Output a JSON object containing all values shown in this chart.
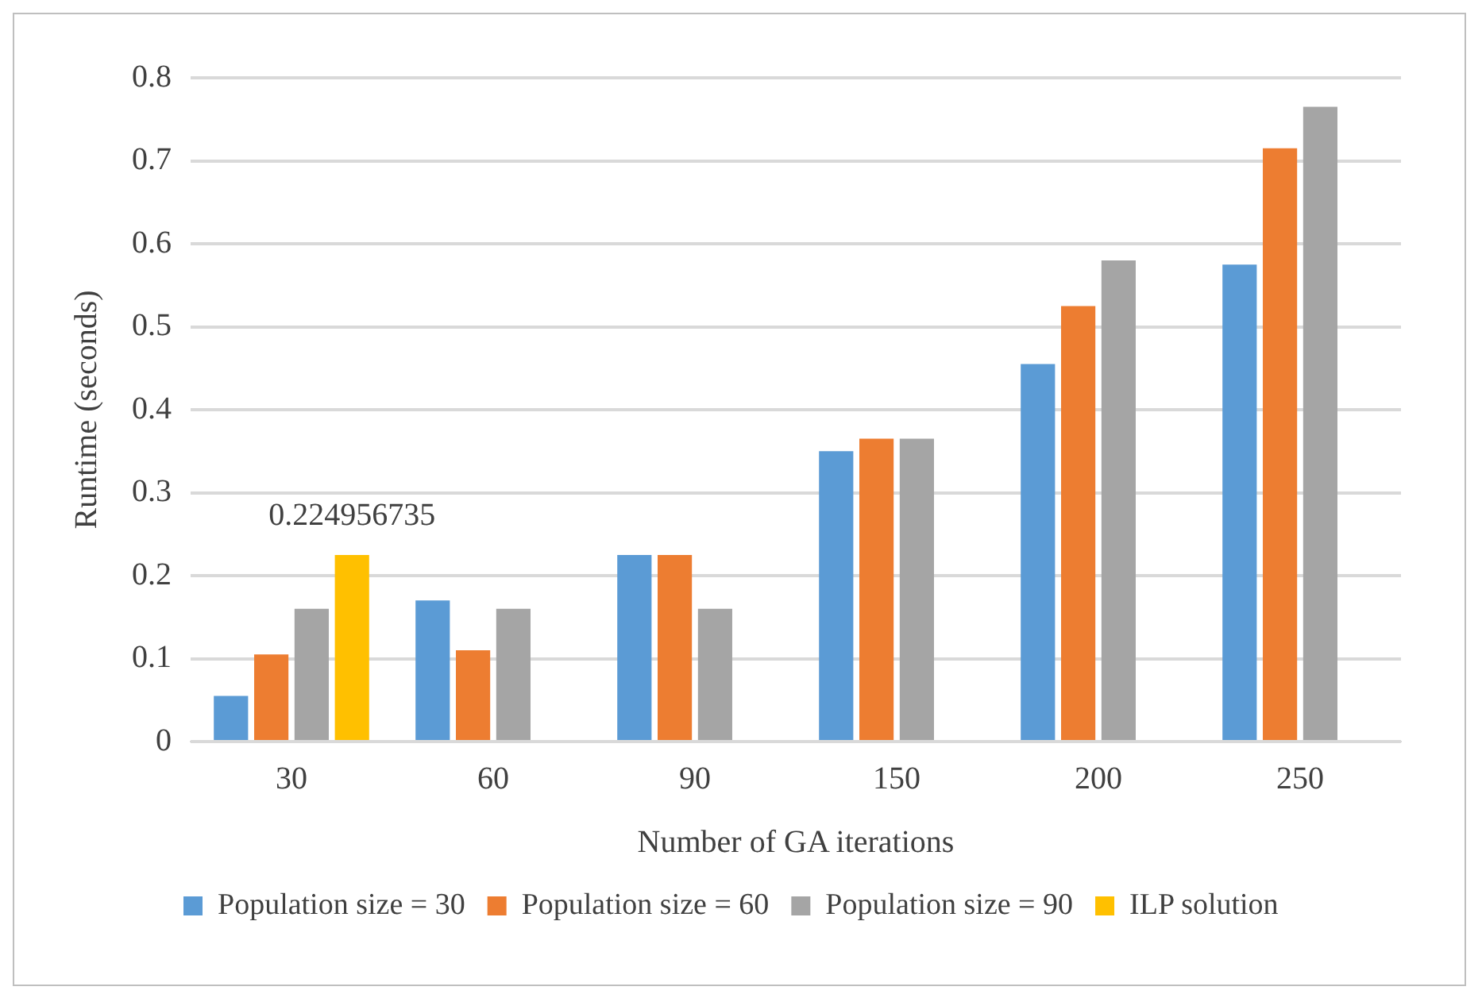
{
  "chart_data": {
    "type": "bar",
    "xlabel": "Number of GA iterations",
    "ylabel": "Runtime (seconds)",
    "categories": [
      "30",
      "60",
      "90",
      "150",
      "200",
      "250"
    ],
    "series": [
      {
        "name": "Population size = 30",
        "color": "#5b9bd5",
        "values": [
          0.055,
          0.17,
          0.225,
          0.35,
          0.455,
          0.575
        ]
      },
      {
        "name": "Population size = 60",
        "color": "#ed7d31",
        "values": [
          0.105,
          0.11,
          0.225,
          0.365,
          0.525,
          0.715
        ]
      },
      {
        "name": "Population size = 90",
        "color": "#a5a5a5",
        "values": [
          0.16,
          0.16,
          0.16,
          0.365,
          0.58,
          0.765
        ]
      },
      {
        "name": "ILP solution",
        "color": "#ffc000",
        "values": [
          0.224956735,
          null,
          null,
          null,
          null,
          null
        ],
        "value_labels": [
          "0.224956735",
          null,
          null,
          null,
          null,
          null
        ]
      }
    ],
    "ylim": [
      0,
      0.8
    ],
    "yticks": [
      0,
      0.1,
      0.2,
      0.3,
      0.4,
      0.5,
      0.6,
      0.7,
      0.8
    ],
    "grid": "y",
    "legend": "bottom"
  }
}
